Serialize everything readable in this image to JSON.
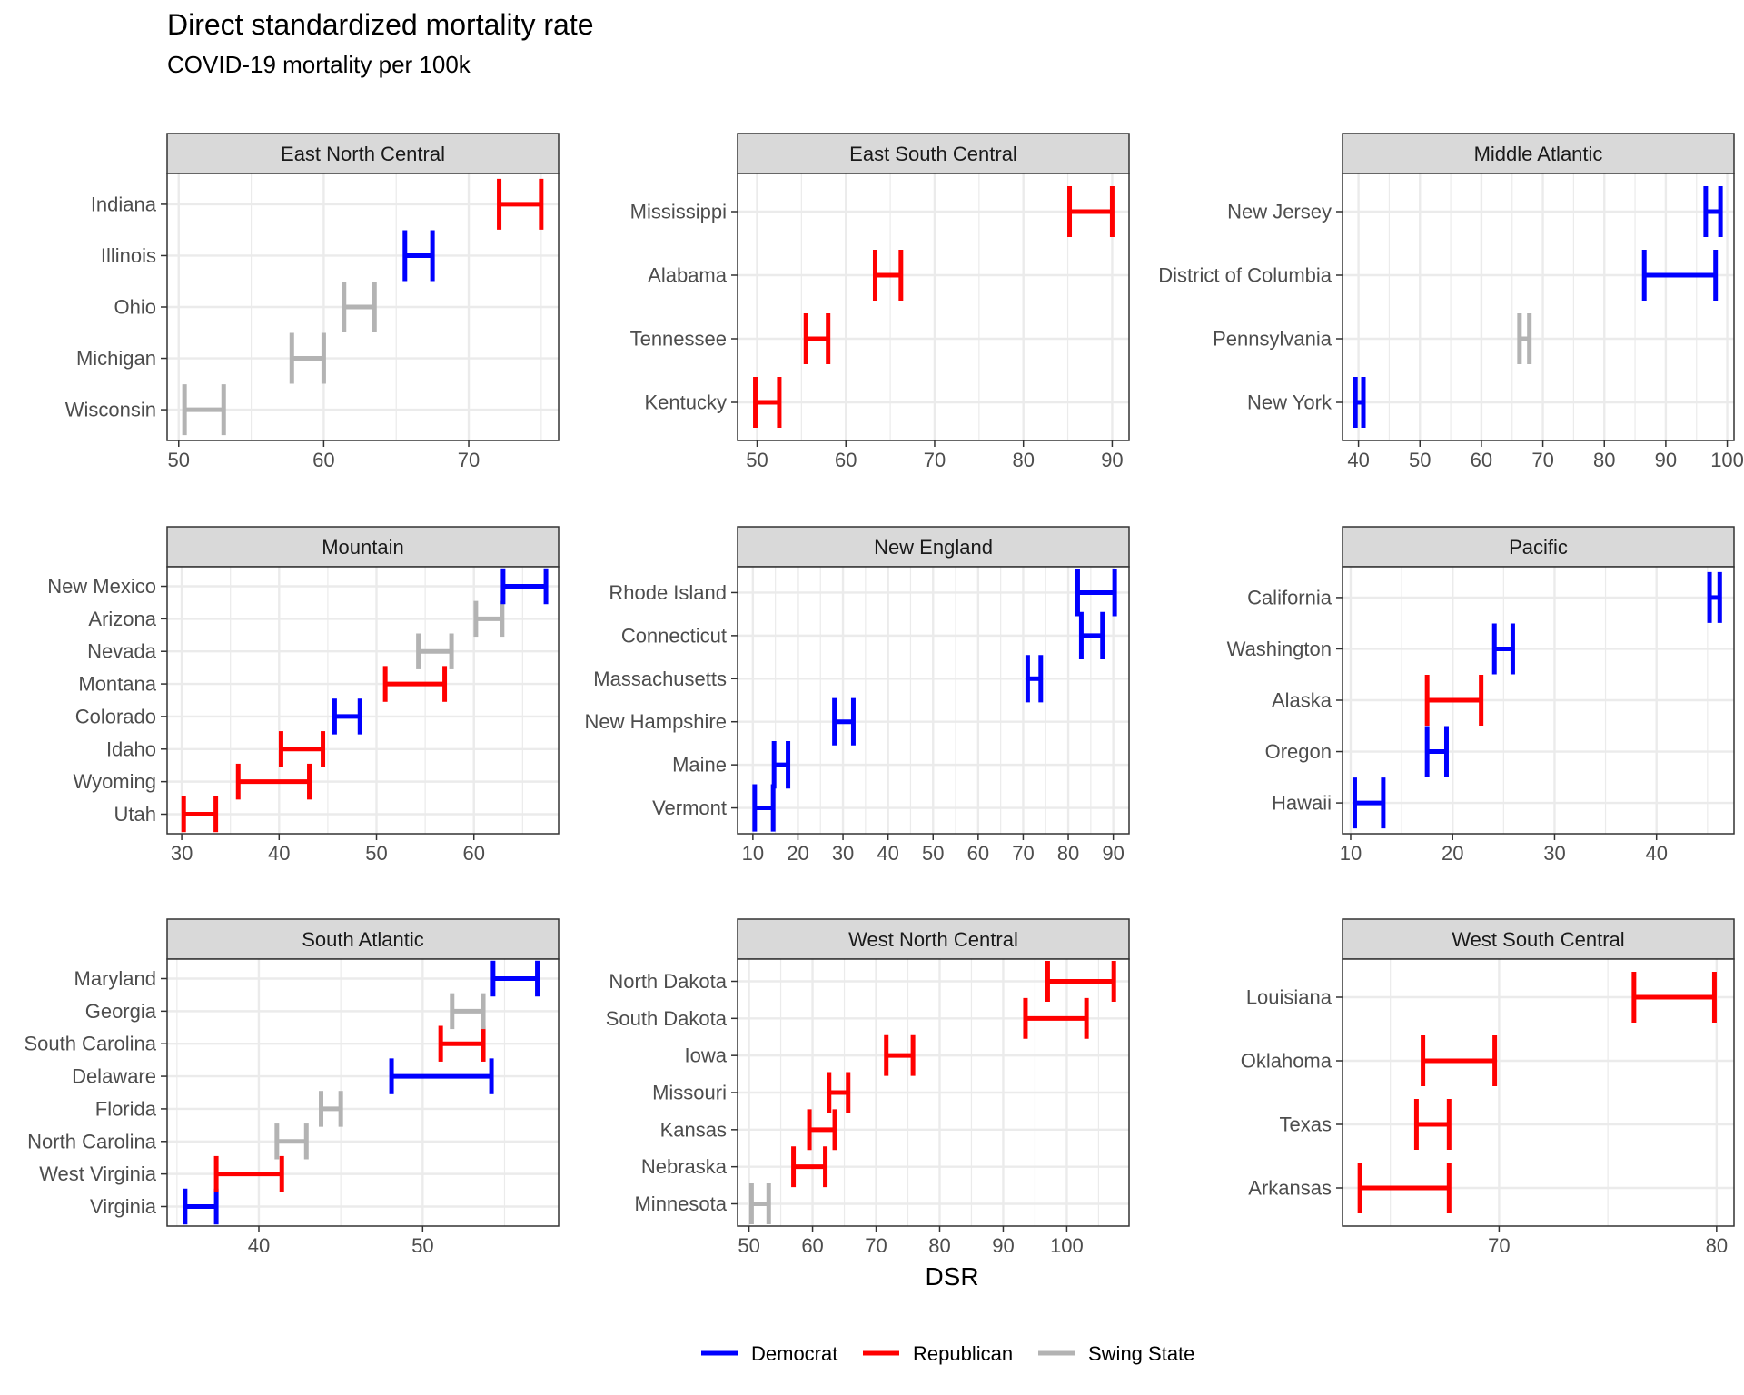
{
  "chart_data": {
    "type": "errorbar",
    "title": "Direct standardized mortality rate",
    "subtitle": "COVID-19 mortality per 100k",
    "xlabel": "DSR",
    "legend": {
      "placement": "bottom",
      "items": [
        {
          "name": "Democrat",
          "color": "#0000ff"
        },
        {
          "name": "Republican",
          "color": "#ff0000"
        },
        {
          "name": "Swing State",
          "color": "#b3b3b3"
        }
      ]
    },
    "colors": {
      "Democrat": "#0000ff",
      "Republican": "#ff0000",
      "Swing State": "#b3b3b3"
    },
    "panels": [
      {
        "name": "East North Central",
        "xlim": [
          49.2,
          76.2
        ],
        "ticks": [
          50,
          60,
          70
        ],
        "rows": [
          {
            "state": "Wisconsin",
            "group": "Swing State",
            "low": 50.4,
            "high": 53.1
          },
          {
            "state": "Michigan",
            "group": "Swing State",
            "low": 57.8,
            "high": 60.0
          },
          {
            "state": "Ohio",
            "group": "Swing State",
            "low": 61.4,
            "high": 63.5
          },
          {
            "state": "Illinois",
            "group": "Democrat",
            "low": 65.6,
            "high": 67.5
          },
          {
            "state": "Indiana",
            "group": "Republican",
            "low": 72.1,
            "high": 75.0
          }
        ]
      },
      {
        "name": "East South Central",
        "xlim": [
          47.8,
          91.9
        ],
        "ticks": [
          50,
          60,
          70,
          80,
          90
        ],
        "rows": [
          {
            "state": "Kentucky",
            "group": "Republican",
            "low": 49.8,
            "high": 52.5
          },
          {
            "state": "Tennessee",
            "group": "Republican",
            "low": 55.5,
            "high": 58.0
          },
          {
            "state": "Alabama",
            "group": "Republican",
            "low": 63.3,
            "high": 66.2
          },
          {
            "state": "Mississippi",
            "group": "Republican",
            "low": 85.2,
            "high": 90.0
          }
        ]
      },
      {
        "name": "Middle Atlantic",
        "xlim": [
          37.4,
          101.1
        ],
        "ticks": [
          40,
          50,
          60,
          70,
          80,
          90,
          100
        ],
        "rows": [
          {
            "state": "New York",
            "group": "Democrat",
            "low": 39.5,
            "high": 40.8
          },
          {
            "state": "Pennsylvania",
            "group": "Swing State",
            "low": 66.2,
            "high": 67.8
          },
          {
            "state": "District of Columbia",
            "group": "Democrat",
            "low": 86.5,
            "high": 98.1
          },
          {
            "state": "New Jersey",
            "group": "Democrat",
            "low": 96.5,
            "high": 98.9
          }
        ]
      },
      {
        "name": "Mountain",
        "xlim": [
          28.5,
          68.7
        ],
        "ticks": [
          30,
          40,
          50,
          60
        ],
        "rows": [
          {
            "state": "Utah",
            "group": "Republican",
            "low": 30.2,
            "high": 33.5
          },
          {
            "state": "Wyoming",
            "group": "Republican",
            "low": 35.8,
            "high": 43.1
          },
          {
            "state": "Idaho",
            "group": "Republican",
            "low": 40.2,
            "high": 44.5
          },
          {
            "state": "Colorado",
            "group": "Democrat",
            "low": 45.7,
            "high": 48.3
          },
          {
            "state": "Montana",
            "group": "Republican",
            "low": 50.9,
            "high": 57.0
          },
          {
            "state": "Nevada",
            "group": "Swing State",
            "low": 54.3,
            "high": 57.7
          },
          {
            "state": "Arizona",
            "group": "Swing State",
            "low": 60.2,
            "high": 62.9
          },
          {
            "state": "New Mexico",
            "group": "Democrat",
            "low": 63.0,
            "high": 67.4
          }
        ]
      },
      {
        "name": "New England",
        "xlim": [
          6.6,
          93.5
        ],
        "ticks": [
          10,
          20,
          30,
          40,
          50,
          60,
          70,
          80,
          90
        ],
        "rows": [
          {
            "state": "Vermont",
            "group": "Democrat",
            "low": 10.4,
            "high": 14.5
          },
          {
            "state": "Maine",
            "group": "Democrat",
            "low": 14.7,
            "high": 17.8
          },
          {
            "state": "New Hampshire",
            "group": "Democrat",
            "low": 28.1,
            "high": 32.3
          },
          {
            "state": "Massachusetts",
            "group": "Democrat",
            "low": 71.0,
            "high": 73.9
          },
          {
            "state": "Connecticut",
            "group": "Democrat",
            "low": 82.9,
            "high": 87.6
          },
          {
            "state": "Rhode Island",
            "group": "Democrat",
            "low": 82.1,
            "high": 90.3
          }
        ]
      },
      {
        "name": "Pacific",
        "xlim": [
          9.2,
          47.6
        ],
        "ticks": [
          10,
          20,
          30,
          40
        ],
        "rows": [
          {
            "state": "Hawaii",
            "group": "Democrat",
            "low": 10.4,
            "high": 13.2
          },
          {
            "state": "Oregon",
            "group": "Democrat",
            "low": 17.5,
            "high": 19.4
          },
          {
            "state": "Alaska",
            "group": "Republican",
            "low": 17.5,
            "high": 22.8
          },
          {
            "state": "Washington",
            "group": "Democrat",
            "low": 24.1,
            "high": 25.9
          },
          {
            "state": "California",
            "group": "Democrat",
            "low": 45.2,
            "high": 46.2
          }
        ]
      },
      {
        "name": "South Atlantic",
        "xlim": [
          34.4,
          58.3
        ],
        "ticks": [
          40,
          50
        ],
        "rows": [
          {
            "state": "Virginia",
            "group": "Democrat",
            "low": 35.5,
            "high": 37.4
          },
          {
            "state": "West Virginia",
            "group": "Republican",
            "low": 37.4,
            "high": 41.4
          },
          {
            "state": "North Carolina",
            "group": "Swing State",
            "low": 41.1,
            "high": 42.9
          },
          {
            "state": "Florida",
            "group": "Swing State",
            "low": 43.8,
            "high": 45.0
          },
          {
            "state": "Delaware",
            "group": "Democrat",
            "low": 48.1,
            "high": 54.2
          },
          {
            "state": "South Carolina",
            "group": "Republican",
            "low": 51.1,
            "high": 53.7
          },
          {
            "state": "Georgia",
            "group": "Swing State",
            "low": 51.8,
            "high": 53.7
          },
          {
            "state": "Maryland",
            "group": "Democrat",
            "low": 54.3,
            "high": 57.0
          }
        ]
      },
      {
        "name": "West North Central",
        "xlim": [
          48.2,
          109.8
        ],
        "ticks": [
          50,
          60,
          70,
          80,
          90,
          100
        ],
        "rows": [
          {
            "state": "Minnesota",
            "group": "Swing State",
            "low": 50.4,
            "high": 53.1
          },
          {
            "state": "Nebraska",
            "group": "Republican",
            "low": 57.0,
            "high": 62.0
          },
          {
            "state": "Kansas",
            "group": "Republican",
            "low": 59.5,
            "high": 63.5
          },
          {
            "state": "Missouri",
            "group": "Republican",
            "low": 62.6,
            "high": 65.6
          },
          {
            "state": "Iowa",
            "group": "Republican",
            "low": 71.6,
            "high": 75.8
          },
          {
            "state": "South Dakota",
            "group": "Republican",
            "low": 93.5,
            "high": 103.1
          },
          {
            "state": "North Dakota",
            "group": "Republican",
            "low": 97.0,
            "high": 107.4
          }
        ]
      },
      {
        "name": "West South Central",
        "xlim": [
          62.8,
          80.8
        ],
        "ticks": [
          70,
          80
        ],
        "rows": [
          {
            "state": "Arkansas",
            "group": "Republican",
            "low": 63.6,
            "high": 67.7
          },
          {
            "state": "Texas",
            "group": "Republican",
            "low": 66.2,
            "high": 67.7
          },
          {
            "state": "Oklahoma",
            "group": "Republican",
            "low": 66.5,
            "high": 69.8
          },
          {
            "state": "Louisiana",
            "group": "Republican",
            "low": 76.2,
            "high": 79.9
          }
        ]
      }
    ]
  }
}
